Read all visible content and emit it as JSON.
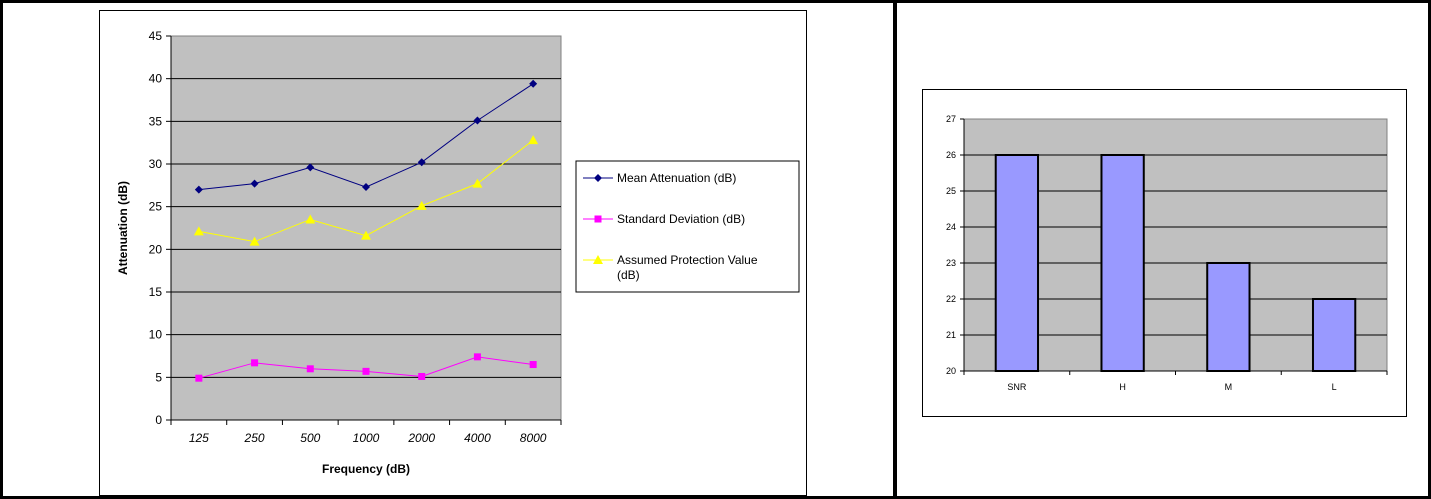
{
  "chart_data": [
    {
      "type": "line",
      "title": "",
      "xlabel": "Frequency (dB)",
      "ylabel": "Attenuation (dB)",
      "categories": [
        "125",
        "250",
        "500",
        "1000",
        "2000",
        "4000",
        "8000"
      ],
      "ylim": [
        0,
        45
      ],
      "yticks": [
        "0",
        "5",
        "10",
        "15",
        "20",
        "25",
        "30",
        "35",
        "40",
        "45"
      ],
      "grid": true,
      "legend_position": "right",
      "series": [
        {
          "name": "Mean Attenuation (dB)",
          "color": "#000080",
          "marker": "diamond",
          "values": [
            27.0,
            27.7,
            29.6,
            27.3,
            30.2,
            35.1,
            39.4
          ]
        },
        {
          "name": "Standard Deviation (dB)",
          "color": "#ff00ff",
          "marker": "square",
          "values": [
            4.9,
            6.7,
            6.0,
            5.7,
            5.1,
            7.4,
            6.5
          ]
        },
        {
          "name": "Assumed Protection Value (dB)",
          "color": "#ffff00",
          "marker": "triangle",
          "values": [
            22.1,
            20.9,
            23.5,
            21.6,
            25.1,
            27.7,
            32.8
          ]
        }
      ]
    },
    {
      "type": "bar",
      "title": "",
      "xlabel": "",
      "ylabel": "",
      "categories": [
        "SNR",
        "H",
        "M",
        "L"
      ],
      "values": [
        26,
        26,
        23,
        22
      ],
      "ylim": [
        20,
        27
      ],
      "yticks": [
        "20",
        "21",
        "22",
        "23",
        "24",
        "25",
        "26",
        "27"
      ],
      "grid": true,
      "bar_color": "#9999ff"
    }
  ]
}
